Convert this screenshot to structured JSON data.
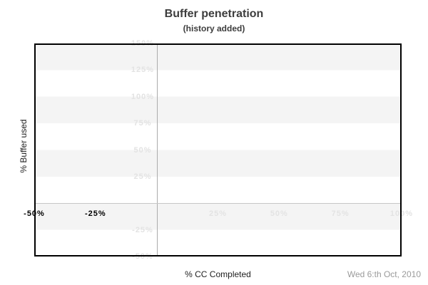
{
  "header": {
    "title": "Buffer penetration",
    "subtitle": "(history added)"
  },
  "footer": {
    "date": "Wed 6:th Oct, 2010"
  },
  "colors": {
    "title_text": "#3d3d3d",
    "axis_title_text": "#1f1f1f",
    "date_text": "#9a9a9a",
    "plot_border": "#000000",
    "stripe": "#f4f4f4",
    "stripe_alt": "#ffffff",
    "zero_line_v": "#ababab",
    "zero_line_h": "#c6c6c6",
    "tick_light": "#e3e3e3",
    "tick_dark": "#000000"
  },
  "chart_data": {
    "type": "line",
    "title": "Buffer penetration",
    "subtitle": "(history added)",
    "xlabel": "% CC Completed",
    "ylabel": "% Buffer used",
    "xlim": [
      -50,
      100
    ],
    "ylim": [
      -50,
      150
    ],
    "grid": "striped-horizontal-bands",
    "band_step_pct": 25,
    "legend": "none",
    "zero_lines": {
      "vertical_at_x": 0,
      "horizontal_at_y": 0
    },
    "x_ticks": [
      {
        "value": -50,
        "label": "-50%",
        "style": "dark"
      },
      {
        "value": -25,
        "label": "-25%",
        "style": "dark"
      },
      {
        "value": 25,
        "label": "25%",
        "style": "light"
      },
      {
        "value": 50,
        "label": "50%",
        "style": "light"
      },
      {
        "value": 75,
        "label": "75%",
        "style": "light"
      },
      {
        "value": 100,
        "label": "100%",
        "style": "light"
      }
    ],
    "y_ticks": [
      {
        "value": 150,
        "label": "150%"
      },
      {
        "value": 125,
        "label": "125%"
      },
      {
        "value": 100,
        "label": "100%"
      },
      {
        "value": 75,
        "label": "75%"
      },
      {
        "value": 50,
        "label": "50%"
      },
      {
        "value": 25,
        "label": "25%"
      },
      {
        "value": -25,
        "label": "-25%"
      },
      {
        "value": -50,
        "label": "-50%"
      }
    ],
    "series": []
  }
}
